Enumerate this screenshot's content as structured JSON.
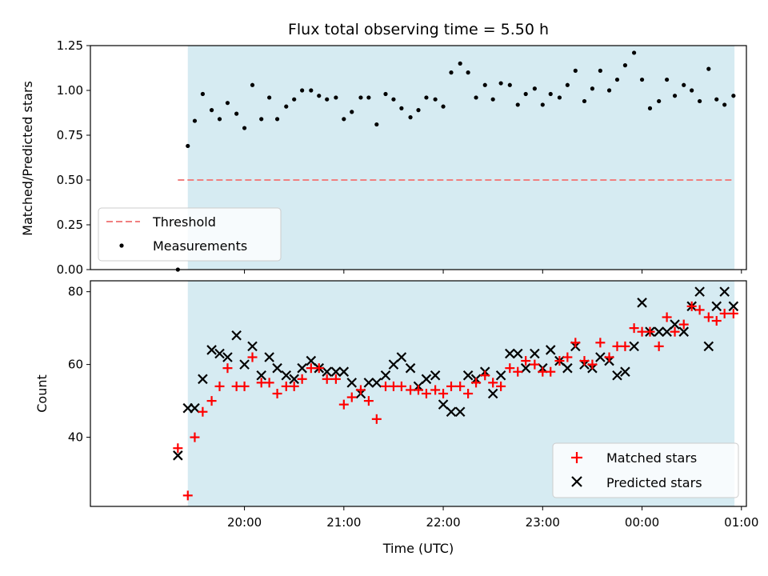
{
  "chart_data": [
    {
      "type": "scatter",
      "title": "Flux total observing time = 5.50 h",
      "xlabel": "",
      "ylabel": "Matched/Predicted stars",
      "ylim": [
        0,
        1.25
      ],
      "yticks": [
        "0.00",
        "0.25",
        "0.50",
        "0.75",
        "1.00",
        "1.25"
      ],
      "x_unit": "hours after 19:00 UTC",
      "legend": {
        "position": "lower-left",
        "entries": [
          {
            "label": "Threshold",
            "style": "dashed-line",
            "color": "#f08080"
          },
          {
            "label": "Measurements",
            "style": "dot",
            "color": "#000000"
          }
        ]
      },
      "shaded_region": {
        "x_start": 0.43,
        "x_end": 5.93,
        "color": "#add8e6"
      },
      "threshold": {
        "value": 0.5,
        "x_start": 0.33,
        "x_end": 5.92
      },
      "series": [
        {
          "name": "Measurements",
          "x": [
            0.33,
            0.43,
            0.5,
            0.58,
            0.67,
            0.75,
            0.83,
            0.92,
            1.0,
            1.08,
            1.17,
            1.25,
            1.33,
            1.42,
            1.5,
            1.58,
            1.67,
            1.75,
            1.83,
            1.92,
            2.0,
            2.08,
            2.17,
            2.25,
            2.33,
            2.42,
            2.5,
            2.58,
            2.67,
            2.75,
            2.83,
            2.92,
            3.0,
            3.08,
            3.17,
            3.25,
            3.33,
            3.42,
            3.5,
            3.58,
            3.67,
            3.75,
            3.83,
            3.92,
            4.0,
            4.08,
            4.17,
            4.25,
            4.33,
            4.42,
            4.5,
            4.58,
            4.67,
            4.75,
            4.83,
            4.92,
            5.0,
            5.08,
            5.17,
            5.25,
            5.33,
            5.42,
            5.5,
            5.58,
            5.67,
            5.75,
            5.83,
            5.92
          ],
          "values": [
            0.0,
            0.69,
            0.83,
            0.98,
            0.89,
            0.84,
            0.93,
            0.87,
            0.79,
            1.03,
            0.84,
            0.96,
            0.84,
            0.91,
            0.95,
            1.0,
            1.0,
            0.97,
            0.95,
            0.96,
            0.84,
            0.88,
            0.96,
            0.96,
            0.81,
            0.98,
            0.95,
            0.9,
            0.85,
            0.89,
            0.96,
            0.95,
            0.91,
            1.1,
            1.15,
            1.1,
            0.96,
            1.03,
            0.95,
            1.04,
            1.03,
            0.92,
            0.98,
            1.01,
            0.92,
            0.98,
            0.96,
            1.03,
            1.11,
            0.94,
            1.01,
            1.11,
            1.0,
            1.06,
            1.14,
            1.21,
            1.06,
            0.9,
            0.94,
            1.06,
            0.97,
            1.03,
            1.0,
            0.94,
            1.12,
            0.95,
            0.92,
            0.97
          ],
          "color": "#000000"
        }
      ]
    },
    {
      "type": "scatter",
      "xlabel": "Time (UTC)",
      "ylabel": "Count",
      "ylim": [
        21,
        83
      ],
      "yticks": [
        "40",
        "60",
        "80"
      ],
      "xticks": [
        "20:00",
        "21:00",
        "22:00",
        "23:00",
        "00:00",
        "01:00"
      ],
      "x_unit": "hours after 19:00 UTC",
      "xlim": [
        -0.55,
        6.05
      ],
      "legend": {
        "position": "lower-right",
        "entries": [
          {
            "label": "Matched stars",
            "style": "plus",
            "color": "#ff0000"
          },
          {
            "label": "Predicted stars",
            "style": "cross",
            "color": "#000000"
          }
        ]
      },
      "shaded_region": {
        "x_start": 0.43,
        "x_end": 5.93,
        "color": "#add8e6"
      },
      "series": [
        {
          "name": "Matched stars",
          "marker": "plus",
          "color": "#ff0000",
          "x": [
            0.33,
            0.43,
            0.5,
            0.58,
            0.67,
            0.75,
            0.83,
            0.92,
            1.0,
            1.08,
            1.17,
            1.25,
            1.33,
            1.42,
            1.5,
            1.58,
            1.67,
            1.75,
            1.83,
            1.92,
            2.0,
            2.08,
            2.17,
            2.25,
            2.33,
            2.42,
            2.5,
            2.58,
            2.67,
            2.75,
            2.83,
            2.92,
            3.0,
            3.08,
            3.17,
            3.25,
            3.33,
            3.42,
            3.5,
            3.58,
            3.67,
            3.75,
            3.83,
            3.92,
            4.0,
            4.08,
            4.17,
            4.25,
            4.33,
            4.42,
            4.5,
            4.58,
            4.67,
            4.75,
            4.83,
            4.92,
            5.0,
            5.08,
            5.17,
            5.25,
            5.33,
            5.42,
            5.5,
            5.58,
            5.67,
            5.75,
            5.83,
            5.92
          ],
          "values": [
            37,
            24,
            40,
            47,
            50,
            54,
            59,
            54,
            54,
            62,
            55,
            55,
            52,
            54,
            54,
            56,
            59,
            59,
            56,
            56,
            49,
            51,
            53,
            50,
            45,
            54,
            54,
            54,
            53,
            53,
            52,
            53,
            52,
            54,
            54,
            52,
            55,
            57,
            55,
            54,
            59,
            58,
            61,
            60,
            58,
            58,
            61,
            62,
            66,
            61,
            60,
            66,
            62,
            65,
            65,
            70,
            69,
            69,
            65,
            73,
            69,
            71,
            76,
            75,
            73,
            72,
            74,
            74
          ]
        },
        {
          "name": "Predicted stars",
          "marker": "cross",
          "color": "#000000",
          "x": [
            0.33,
            0.43,
            0.5,
            0.58,
            0.67,
            0.75,
            0.83,
            0.92,
            1.0,
            1.08,
            1.17,
            1.25,
            1.33,
            1.42,
            1.5,
            1.58,
            1.67,
            1.75,
            1.83,
            1.92,
            2.0,
            2.08,
            2.17,
            2.25,
            2.33,
            2.42,
            2.5,
            2.58,
            2.67,
            2.75,
            2.83,
            2.92,
            3.0,
            3.08,
            3.17,
            3.25,
            3.33,
            3.42,
            3.5,
            3.58,
            3.67,
            3.75,
            3.83,
            3.92,
            4.0,
            4.08,
            4.17,
            4.25,
            4.33,
            4.42,
            4.5,
            4.58,
            4.67,
            4.75,
            4.83,
            4.92,
            5.0,
            5.08,
            5.17,
            5.25,
            5.33,
            5.42,
            5.5,
            5.58,
            5.67,
            5.75,
            5.83,
            5.92
          ],
          "values": [
            35,
            48,
            48,
            56,
            64,
            63,
            62,
            68,
            60,
            65,
            57,
            62,
            59,
            57,
            56,
            59,
            61,
            59,
            58,
            58,
            58,
            55,
            52,
            55,
            55,
            57,
            60,
            62,
            59,
            54,
            56,
            57,
            49,
            47,
            47,
            57,
            56,
            58,
            52,
            57,
            63,
            63,
            59,
            63,
            59,
            64,
            61,
            59,
            65,
            60,
            59,
            62,
            61,
            57,
            58,
            65,
            77,
            69,
            69,
            69,
            71,
            69,
            76,
            80,
            65,
            76,
            80,
            76
          ]
        }
      ]
    }
  ]
}
